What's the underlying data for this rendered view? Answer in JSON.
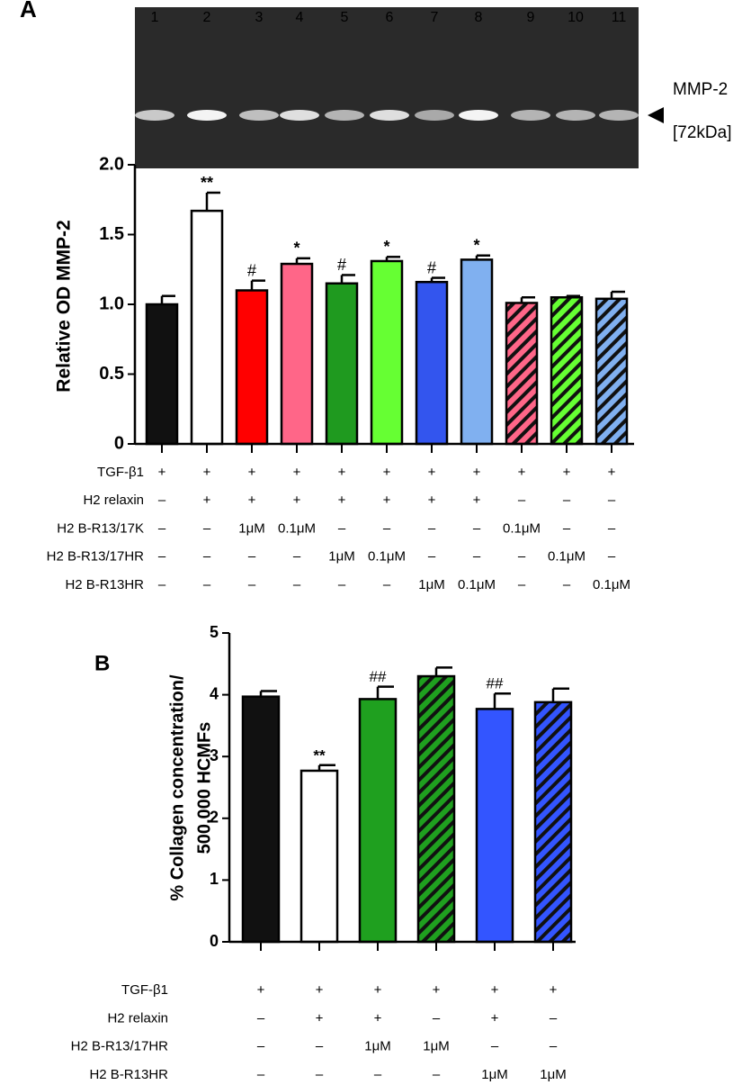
{
  "gel": {
    "panel": "A",
    "lanes": [
      1,
      2,
      3,
      4,
      5,
      6,
      7,
      8,
      9,
      10,
      11
    ],
    "label": "MMP-2",
    "size": "[72kDa]"
  },
  "chart_data": [
    {
      "type": "bar",
      "ylabel": "Relative OD MMP-2",
      "categories": [
        null,
        null,
        null,
        null,
        null,
        null,
        null,
        null,
        null,
        null,
        null
      ],
      "values": [
        1.0,
        1.67,
        1.1,
        1.29,
        1.15,
        1.31,
        1.16,
        1.32,
        1.01,
        1.05,
        1.04
      ],
      "errors": [
        0.06,
        0.13,
        0.07,
        0.04,
        0.06,
        0.03,
        0.03,
        0.03,
        0.04,
        0.01,
        0.05
      ],
      "annotations": [
        null,
        "**",
        "#",
        "*",
        "#",
        "*",
        "#",
        "*",
        null,
        null,
        null
      ],
      "colors": [
        "#111111",
        "#ffffff",
        "#ff0000",
        "#ff6688",
        "#1f9a1f",
        "#66ff33",
        "#3355ee",
        "#80b0f0",
        "#ff6688",
        "#66ff33",
        "#80b0f0"
      ],
      "hatched": [
        false,
        false,
        false,
        false,
        false,
        false,
        false,
        false,
        true,
        true,
        true
      ],
      "ylim": [
        0,
        2
      ],
      "yticks": [
        0,
        0.5,
        {
          "value": 1,
          "label": "1.0"
        },
        1.5,
        {
          "value": 2,
          "label": "2.0"
        }
      ],
      "conditions": [
        {
          "name": "TGF-β1",
          "color": "#000000",
          "values": [
            "+",
            "+",
            "+",
            "+",
            "+",
            "+",
            "+",
            "+",
            "+",
            "+",
            "+"
          ]
        },
        {
          "name": "H2 relaxin",
          "color": "#000000",
          "values": [
            "–",
            "+",
            "+",
            "+",
            "+",
            "+",
            "+",
            "+",
            "–",
            "–",
            "–"
          ]
        },
        {
          "name": "H2 B-R13/17K",
          "color": "#ee1111",
          "values": [
            "–",
            "–",
            "1μM",
            "0.1μM",
            "–",
            "–",
            "–",
            "–",
            "0.1μM",
            "–",
            "–"
          ]
        },
        {
          "name": "H2 B-R13/17HR",
          "color": "#3a9a1a",
          "values": [
            "–",
            "–",
            "–",
            "–",
            "1μM",
            "0.1μM",
            "–",
            "–",
            "–",
            "0.1μM",
            "–"
          ]
        },
        {
          "name": "H2 B-R13HR",
          "color": "#3050e0",
          "values": [
            "–",
            "–",
            "–",
            "–",
            "–",
            "–",
            "1μM",
            "0.1μM",
            "–",
            "–",
            "0.1μM"
          ]
        }
      ]
    },
    {
      "type": "bar",
      "panel": "B",
      "ylabel": [
        "% Collagen concentration/",
        "500,000 HCMFs"
      ],
      "categories": [
        null,
        null,
        null,
        null,
        null,
        null
      ],
      "values": [
        3.97,
        2.77,
        3.93,
        4.3,
        3.77,
        3.88
      ],
      "errors": [
        0.09,
        0.09,
        0.2,
        0.14,
        0.25,
        0.22
      ],
      "annotations": [
        null,
        "**",
        "##",
        null,
        "##",
        null
      ],
      "colors": [
        "#111111",
        "#ffffff",
        "#1fa01f",
        "#1fa01f",
        "#3355ff",
        "#3355ff"
      ],
      "hatched": [
        false,
        false,
        false,
        true,
        false,
        true
      ],
      "ylim": [
        0,
        5
      ],
      "yticks": [
        0,
        1,
        2,
        3,
        4,
        5
      ],
      "conditions": [
        {
          "name": "TGF-β1",
          "color": "#000000",
          "values": [
            "+",
            "+",
            "+",
            "+",
            "+",
            "+"
          ]
        },
        {
          "name": "H2 relaxin",
          "color": "#000000",
          "values": [
            "–",
            "+",
            "+",
            "–",
            "+",
            "–"
          ]
        },
        {
          "name": "H2 B-R13/17HR",
          "color": "#3a9a1a",
          "values": [
            "–",
            "–",
            "1μM",
            "1μM",
            "–",
            "–"
          ]
        },
        {
          "name": "H2 B-R13HR",
          "color": "#3050e0",
          "values": [
            "–",
            "–",
            "–",
            "–",
            "1μM",
            "1μM"
          ]
        }
      ]
    }
  ]
}
